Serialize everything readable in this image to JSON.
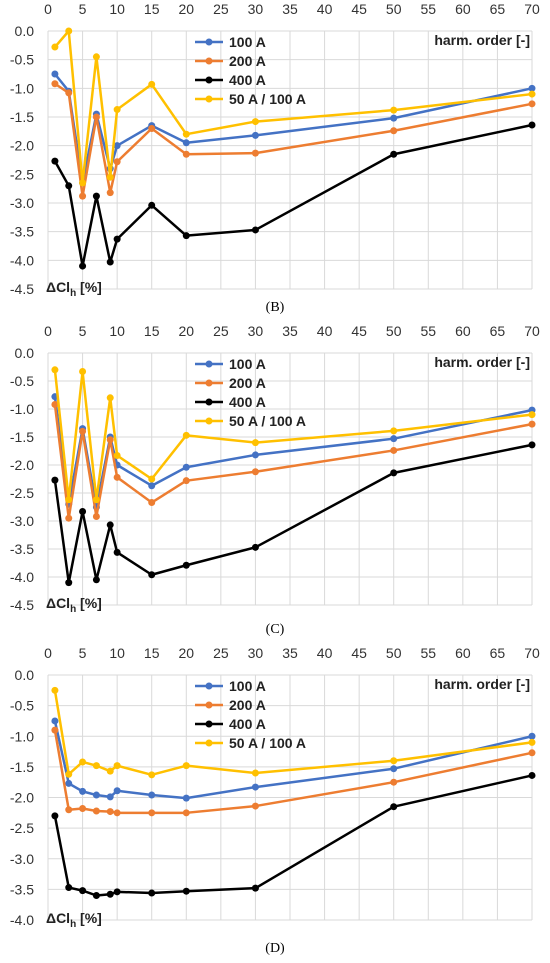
{
  "colors": {
    "s100": "#4472C4",
    "s200": "#ED7D31",
    "s400": "#000000",
    "s50": "#FFC000",
    "grid": "#d9d9d9"
  },
  "chart_data": [
    {
      "type": "line",
      "caption": "(B)",
      "xlabel": "harm. order [-]",
      "ylabel": "ΔCl",
      "ylabel_sub": "h",
      "ylabel_unit": " [%]",
      "xlim": [
        0,
        70
      ],
      "ylim": [
        -4.5,
        0
      ],
      "xticks": [
        0,
        5,
        10,
        15,
        20,
        25,
        30,
        35,
        40,
        45,
        50,
        55,
        60,
        65,
        70
      ],
      "yticks": [
        "0.0",
        "-0.5",
        "-1.0",
        "-1.5",
        "-2.0",
        "-2.5",
        "-3.0",
        "-3.5",
        "-4.0",
        "-4.5"
      ],
      "grid": true,
      "legend_position": "top-center",
      "series": [
        {
          "name": "100 A",
          "color": "#4472C4",
          "x": [
            1,
            3,
            5,
            7,
            9,
            10,
            15,
            20,
            30,
            50,
            70
          ],
          "y": [
            -0.75,
            -1.05,
            -2.65,
            -1.45,
            -2.4,
            -2.0,
            -1.65,
            -1.95,
            -1.82,
            -1.52,
            -1.0
          ]
        },
        {
          "name": "200 A",
          "color": "#ED7D31",
          "x": [
            1,
            3,
            5,
            7,
            9,
            10,
            15,
            20,
            30,
            50,
            70
          ],
          "y": [
            -0.92,
            -1.08,
            -2.88,
            -1.5,
            -2.82,
            -2.28,
            -1.7,
            -2.15,
            -2.13,
            -1.74,
            -1.27
          ]
        },
        {
          "name": "400 A",
          "color": "#000000",
          "x": [
            1,
            3,
            5,
            7,
            9,
            10,
            15,
            20,
            30,
            50,
            70
          ],
          "y": [
            -2.27,
            -2.7,
            -4.1,
            -2.88,
            -4.03,
            -3.63,
            -3.04,
            -3.57,
            -3.47,
            -2.15,
            -1.64
          ]
        },
        {
          "name": "50 A / 100 A",
          "color": "#FFC000",
          "x": [
            1,
            3,
            5,
            7,
            9,
            10,
            15,
            20,
            30,
            50,
            70
          ],
          "y": [
            -0.28,
            0.0,
            -2.65,
            -0.45,
            -2.55,
            -1.37,
            -0.93,
            -1.8,
            -1.58,
            -1.38,
            -1.1
          ]
        }
      ]
    },
    {
      "type": "line",
      "caption": "(C)",
      "xlabel": "harm. order [-]",
      "ylabel": "ΔCl",
      "ylabel_sub": "h",
      "ylabel_unit": " [%]",
      "xlim": [
        0,
        70
      ],
      "ylim": [
        -4.5,
        0
      ],
      "xticks": [
        0,
        5,
        10,
        15,
        20,
        25,
        30,
        35,
        40,
        45,
        50,
        55,
        60,
        65,
        70
      ],
      "yticks": [
        "0.0",
        "-0.5",
        "-1.0",
        "-1.5",
        "-2.0",
        "-2.5",
        "-3.0",
        "-3.5",
        "-4.0",
        "-4.5"
      ],
      "grid": true,
      "legend_position": "top-center",
      "series": [
        {
          "name": "100 A",
          "color": "#4472C4",
          "x": [
            1,
            3,
            5,
            7,
            9,
            10,
            15,
            20,
            30,
            50,
            70
          ],
          "y": [
            -0.78,
            -2.7,
            -1.35,
            -2.75,
            -1.5,
            -2.0,
            -2.37,
            -2.04,
            -1.82,
            -1.53,
            -1.02
          ]
        },
        {
          "name": "200 A",
          "color": "#ED7D31",
          "x": [
            1,
            3,
            5,
            7,
            9,
            10,
            15,
            20,
            30,
            50,
            70
          ],
          "y": [
            -0.92,
            -2.95,
            -1.4,
            -2.92,
            -1.55,
            -2.22,
            -2.67,
            -2.28,
            -2.12,
            -1.74,
            -1.27
          ]
        },
        {
          "name": "400 A",
          "color": "#000000",
          "x": [
            1,
            3,
            5,
            7,
            9,
            10,
            15,
            20,
            30,
            50,
            70
          ],
          "y": [
            -2.27,
            -4.1,
            -2.83,
            -4.05,
            -3.07,
            -3.56,
            -3.96,
            -3.79,
            -3.47,
            -2.14,
            -1.64
          ]
        },
        {
          "name": "50 A / 100 A",
          "color": "#FFC000",
          "x": [
            1,
            3,
            5,
            7,
            9,
            10,
            15,
            20,
            30,
            50,
            70
          ],
          "y": [
            -0.3,
            -2.62,
            -0.33,
            -2.62,
            -0.8,
            -1.83,
            -2.25,
            -1.47,
            -1.6,
            -1.39,
            -1.1
          ]
        }
      ]
    },
    {
      "type": "line",
      "caption": "(D)",
      "xlabel": "harm. order [-]",
      "ylabel": "ΔCl",
      "ylabel_sub": "h",
      "ylabel_unit": " [%]",
      "xlim": [
        0,
        70
      ],
      "ylim": [
        -4.0,
        0
      ],
      "xticks": [
        0,
        5,
        10,
        15,
        20,
        25,
        30,
        35,
        40,
        45,
        50,
        55,
        60,
        65,
        70
      ],
      "yticks": [
        "0.0",
        "-0.5",
        "-1.0",
        "-1.5",
        "-2.0",
        "-2.5",
        "-3.0",
        "-3.5",
        "-4.0"
      ],
      "grid": true,
      "legend_position": "top-center",
      "series": [
        {
          "name": "100 A",
          "color": "#4472C4",
          "x": [
            1,
            3,
            5,
            7,
            9,
            10,
            15,
            20,
            30,
            50,
            70
          ],
          "y": [
            -0.75,
            -1.77,
            -1.9,
            -1.96,
            -1.99,
            -1.89,
            -1.96,
            -2.01,
            -1.83,
            -1.53,
            -1.0
          ]
        },
        {
          "name": "200 A",
          "color": "#ED7D31",
          "x": [
            1,
            3,
            5,
            7,
            9,
            10,
            15,
            20,
            30,
            50,
            70
          ],
          "y": [
            -0.9,
            -2.2,
            -2.18,
            -2.22,
            -2.23,
            -2.25,
            -2.25,
            -2.25,
            -2.14,
            -1.75,
            -1.27
          ]
        },
        {
          "name": "400 A",
          "color": "#000000",
          "x": [
            1,
            3,
            5,
            7,
            9,
            10,
            15,
            20,
            30,
            50,
            70
          ],
          "y": [
            -2.3,
            -3.47,
            -3.52,
            -3.6,
            -3.58,
            -3.54,
            -3.56,
            -3.53,
            -3.48,
            -2.15,
            -1.64
          ]
        },
        {
          "name": "50 A / 100 A",
          "color": "#FFC000",
          "x": [
            1,
            3,
            5,
            7,
            9,
            10,
            15,
            20,
            30,
            50,
            70
          ],
          "y": [
            -0.25,
            -1.62,
            -1.42,
            -1.48,
            -1.57,
            -1.48,
            -1.63,
            -1.48,
            -1.6,
            -1.4,
            -1.1
          ]
        }
      ]
    }
  ]
}
